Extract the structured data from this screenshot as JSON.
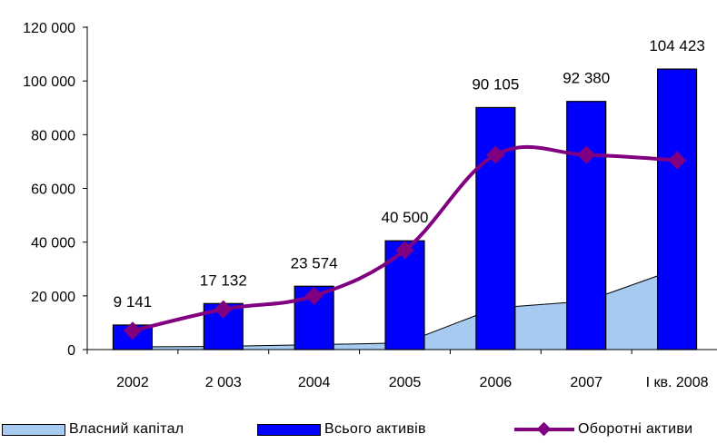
{
  "chart_data": {
    "type": "bar",
    "categories": [
      "2002",
      "2 003",
      "2004",
      "2005",
      "2006",
      "2007",
      "І кв. 2008"
    ],
    "ylim": [
      0,
      120000
    ],
    "yticks": [
      {
        "value": 0,
        "label": "0"
      },
      {
        "value": 20000,
        "label": "20 000"
      },
      {
        "value": 40000,
        "label": "40 000"
      },
      {
        "value": 60000,
        "label": "60 000"
      },
      {
        "value": 80000,
        "label": "80 000"
      },
      {
        "value": 100000,
        "label": "100 000"
      },
      {
        "value": 120000,
        "label": "120 000"
      }
    ],
    "series": [
      {
        "name": "Власний капітал",
        "type": "area",
        "color": "#a6caf0",
        "values": [
          1000,
          1200,
          1800,
          2500,
          15500,
          18000,
          30000
        ]
      },
      {
        "name": "Всього активів",
        "type": "bar",
        "color": "#0000ff",
        "values": [
          9141,
          17132,
          23574,
          40500,
          90105,
          92380,
          104423
        ],
        "data_labels": [
          "9 141",
          "17 132",
          "23 574",
          "40 500",
          "90 105",
          "92 380",
          "104 423"
        ]
      },
      {
        "name": "Оборотні активи",
        "type": "line",
        "color": "#800080",
        "values": [
          7000,
          15000,
          20000,
          37000,
          72500,
          72500,
          70500
        ]
      }
    ],
    "grid": false,
    "legend": "bottom"
  },
  "legend": {
    "equity": "Власний капітал",
    "total": "Всього активів",
    "current": "Оборотні активи"
  }
}
